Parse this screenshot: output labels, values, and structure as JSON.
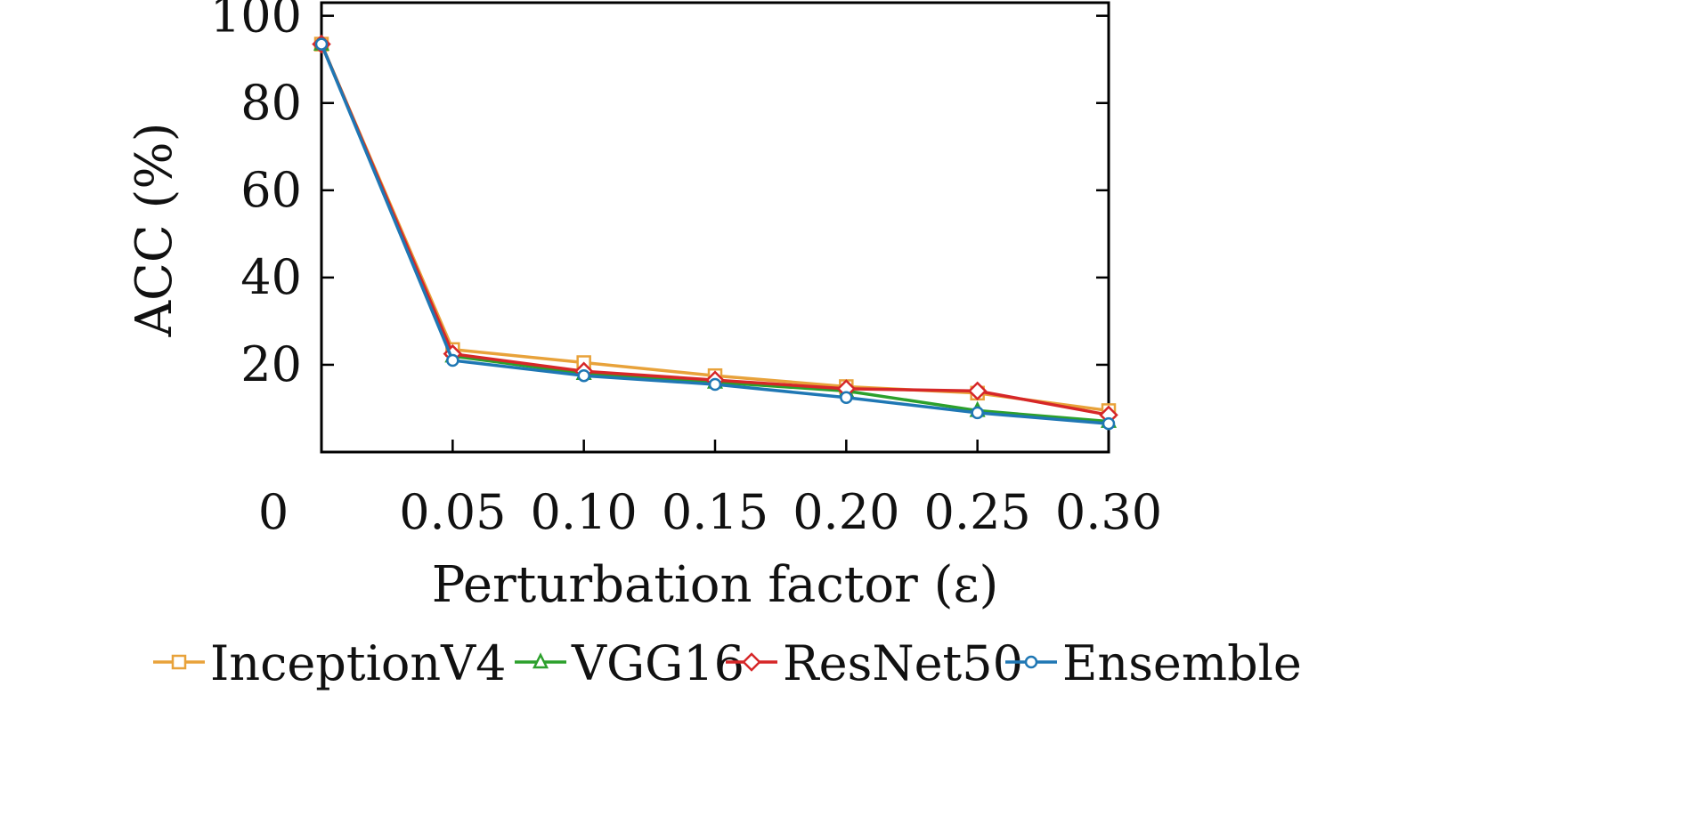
{
  "chart_data": {
    "type": "line",
    "title": "",
    "xlabel": "Perturbation factor (ε)",
    "ylabel": "ACC (%)",
    "x": [
      0,
      0.05,
      0.1,
      0.15,
      0.2,
      0.25,
      0.3
    ],
    "x_tick_labels": [
      "0",
      "0.05",
      "0.10",
      "0.15",
      "0.20",
      "0.25",
      "0.30"
    ],
    "y_ticks": [
      20,
      40,
      60,
      80,
      100
    ],
    "y_tick_labels": [
      "20",
      "40",
      "60",
      "80",
      "100"
    ],
    "xlim": [
      0,
      0.3
    ],
    "ylim": [
      0,
      103
    ],
    "grid": false,
    "legend_position": "bottom",
    "series": [
      {
        "name": "InceptionV4",
        "color": "#E8A23A",
        "marker": "square",
        "values": [
          93.5,
          23.5,
          20.5,
          17.5,
          15.0,
          13.5,
          9.5
        ]
      },
      {
        "name": "VGG16",
        "color": "#2CA02C",
        "marker": "triangle",
        "values": [
          93.5,
          22.0,
          18.0,
          16.0,
          14.0,
          9.5,
          7.0
        ]
      },
      {
        "name": "ResNet50",
        "color": "#D62728",
        "marker": "diamond",
        "values": [
          93.5,
          22.5,
          18.5,
          16.5,
          14.5,
          14.0,
          8.5
        ]
      },
      {
        "name": "Ensemble",
        "color": "#1F77B4",
        "marker": "circle",
        "values": [
          93.5,
          21.0,
          17.5,
          15.5,
          12.5,
          9.0,
          6.5
        ]
      }
    ]
  }
}
